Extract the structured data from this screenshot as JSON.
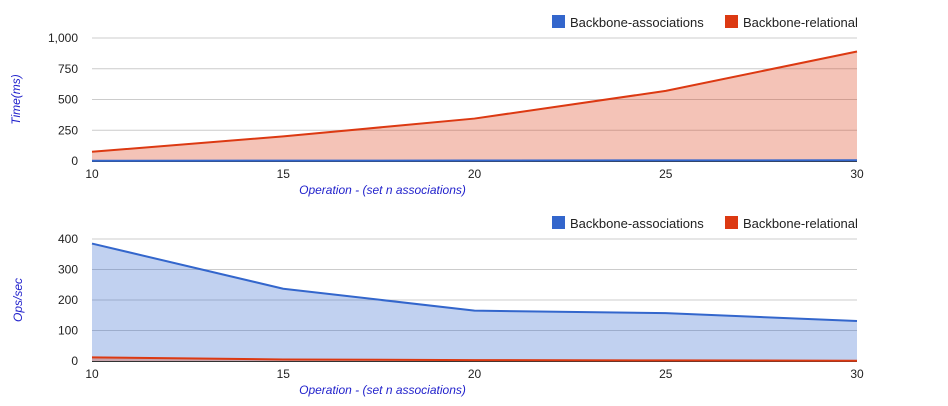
{
  "colors": {
    "associations": "#3366cc",
    "relational": "#dc3912",
    "grid": "#cccccc",
    "axis": "#333333",
    "axis_title": "#2222cc"
  },
  "chart_data": [
    {
      "type": "area",
      "x": [
        10,
        15,
        20,
        25,
        30
      ],
      "xlabel": "Operation - (set n associations)",
      "ylabel": "Time(ms)",
      "ylim": [
        0,
        1000
      ],
      "yticks": [
        0,
        250,
        500,
        750,
        1000
      ],
      "ytick_labels": [
        "0",
        "250",
        "500",
        "750",
        "1,000"
      ],
      "xticks": [
        10,
        15,
        20,
        25,
        30
      ],
      "xtick_labels": [
        "10",
        "15",
        "20",
        "25",
        "30"
      ],
      "grid": true,
      "legend_position": "top-right",
      "series": [
        {
          "name": "Backbone-associations",
          "color": "#3366cc",
          "values": [
            2,
            3,
            4,
            5,
            6
          ]
        },
        {
          "name": "Backbone-relational",
          "color": "#dc3912",
          "values": [
            75,
            200,
            345,
            570,
            890
          ]
        }
      ]
    },
    {
      "type": "area",
      "x": [
        10,
        15,
        20,
        25,
        30
      ],
      "xlabel": "Operation - (set n associations)",
      "ylabel": "Ops/sec",
      "ylim": [
        0,
        400
      ],
      "yticks": [
        0,
        100,
        200,
        300,
        400
      ],
      "ytick_labels": [
        "0",
        "100",
        "200",
        "300",
        "400"
      ],
      "xticks": [
        10,
        15,
        20,
        25,
        30
      ],
      "xtick_labels": [
        "10",
        "15",
        "20",
        "25",
        "30"
      ],
      "grid": true,
      "legend_position": "top-right",
      "series": [
        {
          "name": "Backbone-associations",
          "color": "#3366cc",
          "values": [
            385,
            237,
            165,
            157,
            131
          ]
        },
        {
          "name": "Backbone-relational",
          "color": "#dc3912",
          "values": [
            12,
            5,
            3,
            2,
            1
          ]
        }
      ]
    }
  ]
}
